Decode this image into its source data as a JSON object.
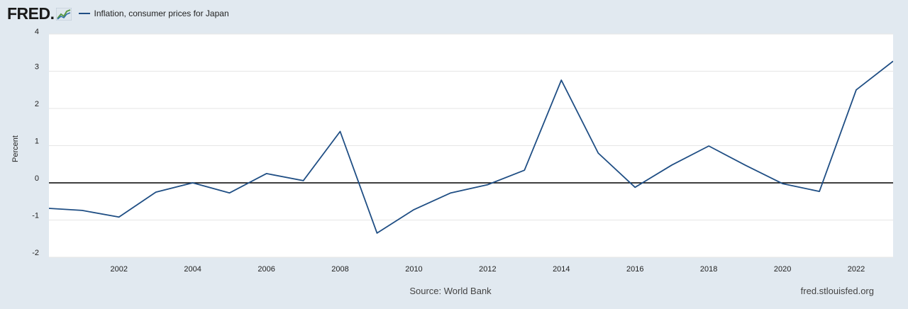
{
  "header": {
    "logo_text": "FRED",
    "logo_dot": ".",
    "series_label": "Inflation, consumer prices for Japan"
  },
  "footer": {
    "source": "Source: World Bank",
    "credit": "fred.stlouisfed.org"
  },
  "colors": {
    "background": "#e1e9f0",
    "plot": "#ffffff",
    "series": "#1f4e84",
    "zero_line": "#000000"
  },
  "chart_data": {
    "type": "line",
    "title": "",
    "xlabel": "",
    "ylabel": "Percent",
    "xlim": [
      2000.1,
      2023
    ],
    "ylim": [
      -2,
      4
    ],
    "grid": true,
    "legend": "top-left",
    "yticks": [
      -2,
      -1,
      0,
      1,
      2,
      3,
      4
    ],
    "xticks": [
      2002,
      2004,
      2006,
      2008,
      2010,
      2012,
      2014,
      2016,
      2018,
      2020,
      2022
    ],
    "series": [
      {
        "name": "Inflation, consumer prices for Japan",
        "x": [
          2000,
          2001,
          2002,
          2003,
          2004,
          2005,
          2006,
          2007,
          2008,
          2009,
          2010,
          2011,
          2012,
          2013,
          2014,
          2015,
          2016,
          2017,
          2018,
          2019,
          2020,
          2021,
          2022,
          2023
        ],
        "values": [
          -0.68,
          -0.74,
          -0.92,
          -0.25,
          0.0,
          -0.27,
          0.25,
          0.06,
          1.38,
          -1.35,
          -0.72,
          -0.27,
          -0.05,
          0.34,
          2.76,
          0.8,
          -0.12,
          0.48,
          0.99,
          0.47,
          -0.02,
          -0.23,
          2.5,
          3.27
        ]
      }
    ]
  }
}
